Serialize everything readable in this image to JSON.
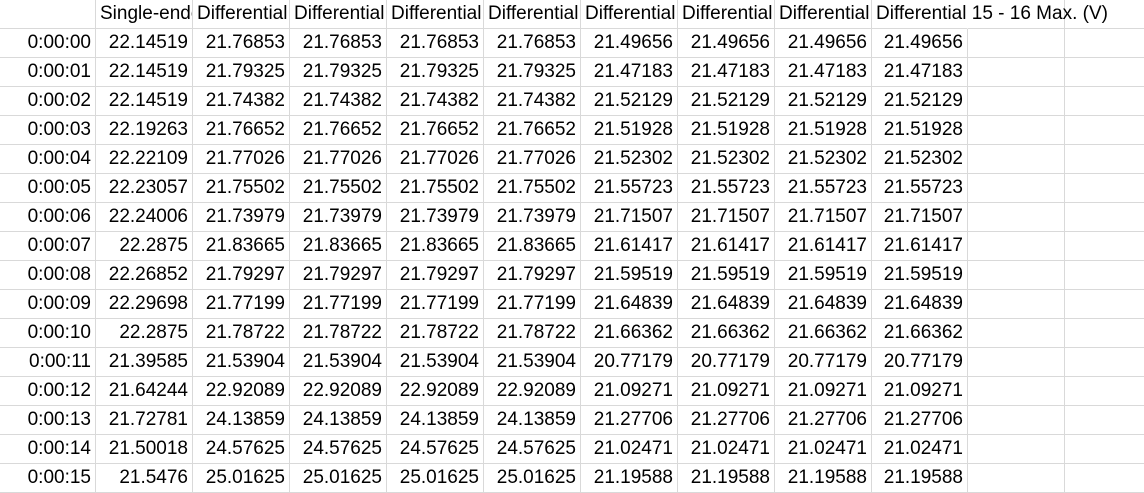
{
  "sheet": {
    "headers": [
      "",
      "Single-ended",
      "Differential",
      "Differential",
      "Differential",
      "Differential",
      "Differential",
      "Differential",
      "Differential",
      "Differential 15 - 16 Max. (V)"
    ],
    "rows": [
      [
        "0:00:00",
        "22.14519",
        "21.76853",
        "21.76853",
        "21.76853",
        "21.76853",
        "21.49656",
        "21.49656",
        "21.49656",
        "21.49656"
      ],
      [
        "0:00:01",
        "22.14519",
        "21.79325",
        "21.79325",
        "21.79325",
        "21.79325",
        "21.47183",
        "21.47183",
        "21.47183",
        "21.47183"
      ],
      [
        "0:00:02",
        "22.14519",
        "21.74382",
        "21.74382",
        "21.74382",
        "21.74382",
        "21.52129",
        "21.52129",
        "21.52129",
        "21.52129"
      ],
      [
        "0:00:03",
        "22.19263",
        "21.76652",
        "21.76652",
        "21.76652",
        "21.76652",
        "21.51928",
        "21.51928",
        "21.51928",
        "21.51928"
      ],
      [
        "0:00:04",
        "22.22109",
        "21.77026",
        "21.77026",
        "21.77026",
        "21.77026",
        "21.52302",
        "21.52302",
        "21.52302",
        "21.52302"
      ],
      [
        "0:00:05",
        "22.23057",
        "21.75502",
        "21.75502",
        "21.75502",
        "21.75502",
        "21.55723",
        "21.55723",
        "21.55723",
        "21.55723"
      ],
      [
        "0:00:06",
        "22.24006",
        "21.73979",
        "21.73979",
        "21.73979",
        "21.73979",
        "21.71507",
        "21.71507",
        "21.71507",
        "21.71507"
      ],
      [
        "0:00:07",
        "22.2875",
        "21.83665",
        "21.83665",
        "21.83665",
        "21.83665",
        "21.61417",
        "21.61417",
        "21.61417",
        "21.61417"
      ],
      [
        "0:00:08",
        "22.26852",
        "21.79297",
        "21.79297",
        "21.79297",
        "21.79297",
        "21.59519",
        "21.59519",
        "21.59519",
        "21.59519"
      ],
      [
        "0:00:09",
        "22.29698",
        "21.77199",
        "21.77199",
        "21.77199",
        "21.77199",
        "21.64839",
        "21.64839",
        "21.64839",
        "21.64839"
      ],
      [
        "0:00:10",
        "22.2875",
        "21.78722",
        "21.78722",
        "21.78722",
        "21.78722",
        "21.66362",
        "21.66362",
        "21.66362",
        "21.66362"
      ],
      [
        "0:00:11",
        "21.39585",
        "21.53904",
        "21.53904",
        "21.53904",
        "21.53904",
        "20.77179",
        "20.77179",
        "20.77179",
        "20.77179"
      ],
      [
        "0:00:12",
        "21.64244",
        "22.92089",
        "22.92089",
        "22.92089",
        "22.92089",
        "21.09271",
        "21.09271",
        "21.09271",
        "21.09271"
      ],
      [
        "0:00:13",
        "21.72781",
        "24.13859",
        "24.13859",
        "24.13859",
        "24.13859",
        "21.27706",
        "21.27706",
        "21.27706",
        "21.27706"
      ],
      [
        "0:00:14",
        "21.50018",
        "24.57625",
        "24.57625",
        "24.57625",
        "24.57625",
        "21.02471",
        "21.02471",
        "21.02471",
        "21.02471"
      ],
      [
        "0:00:15",
        "21.5476",
        "25.01625",
        "25.01625",
        "25.01625",
        "25.01625",
        "21.19588",
        "21.19588",
        "21.19588",
        "21.19588"
      ]
    ]
  },
  "colors": {
    "gridline": "#d9d9d9",
    "text": "#000000",
    "background": "#ffffff"
  }
}
